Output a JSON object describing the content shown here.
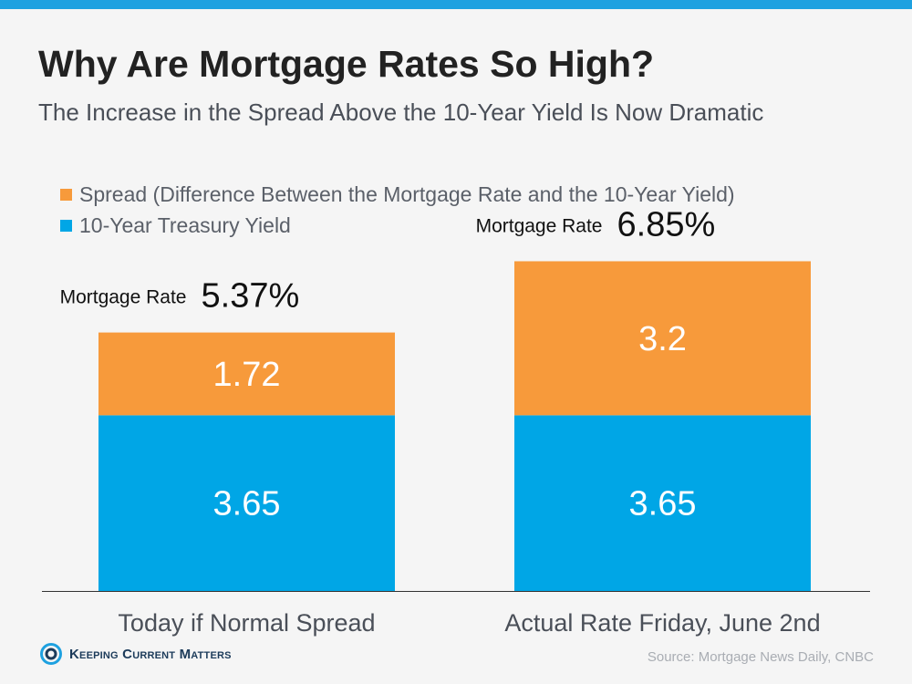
{
  "header": {
    "title": "Why Are Mortgage Rates So High?",
    "subtitle": "The Increase in the Spread Above the 10-Year Yield Is Now Dramatic"
  },
  "chart_data": {
    "type": "bar",
    "stacked": true,
    "title": "Why Are Mortgage Rates So High?",
    "subtitle": "The Increase in the Spread Above the 10-Year Yield Is Now Dramatic",
    "categories": [
      "Today if Normal Spread",
      "Actual Rate Friday, June 2nd"
    ],
    "series": [
      {
        "name": "10-Year Treasury Yield",
        "values": [
          3.65,
          3.65
        ],
        "color": "#00a6e6"
      },
      {
        "name": "Spread (Difference Between the Mortgage Rate and the 10-Year Yield)",
        "values": [
          1.72,
          3.2
        ],
        "color": "#f79a3b"
      }
    ],
    "legend_order": [
      1,
      0
    ],
    "totals": {
      "label": "Mortgage Rate",
      "values": [
        "5.37%",
        "6.85%"
      ]
    },
    "ylim": [
      0,
      7.2
    ],
    "grid": false,
    "legend_position": "top-left"
  },
  "footer": {
    "logo_text": "Keeping Current Matters",
    "source": "Source: Mortgage News Daily, CNBC"
  }
}
